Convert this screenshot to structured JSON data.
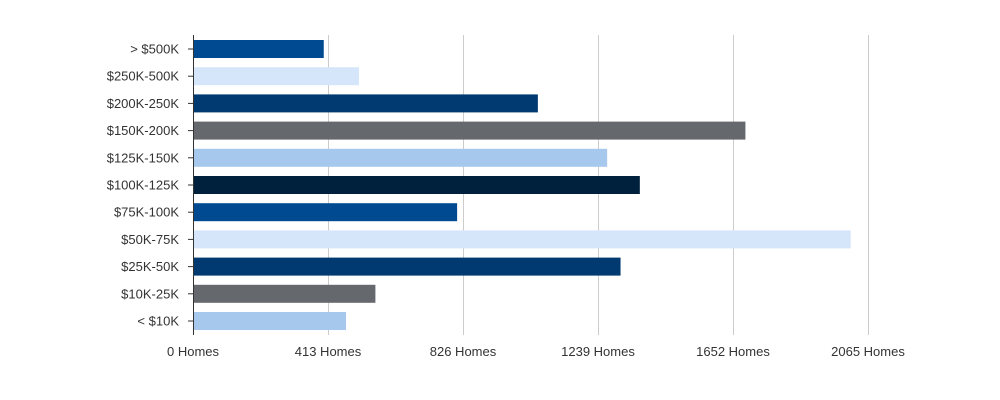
{
  "chart_data": {
    "type": "bar",
    "orientation": "horizontal",
    "categories": [
      "> $500K",
      "$250K-500K",
      "$200K-250K",
      "$150K-200K",
      "$125K-150K",
      "$100K-125K",
      "$75K-100K",
      "$50K-75K",
      "$25K-50K",
      "$10K-25K",
      "< $10K"
    ],
    "values": [
      400,
      508,
      1055,
      1690,
      1267,
      1367,
      808,
      2012,
      1308,
      558,
      468
    ],
    "colors": [
      "#004a91",
      "#d6e6fa",
      "#003a70",
      "#65686c",
      "#a6c8ec",
      "#00213d",
      "#004a91",
      "#d6e6fa",
      "#003a70",
      "#65686c",
      "#a6c8ec"
    ],
    "xlim": [
      0,
      2065
    ],
    "x_ticks": [
      0,
      413,
      826,
      1239,
      1652,
      2065
    ],
    "x_tick_labels": [
      "0 Homes",
      "413 Homes",
      "826 Homes",
      "1239 Homes",
      "1652 Homes",
      "2065 Homes"
    ],
    "grid": true,
    "legend": "none",
    "title": "",
    "xlabel": "",
    "ylabel": ""
  }
}
